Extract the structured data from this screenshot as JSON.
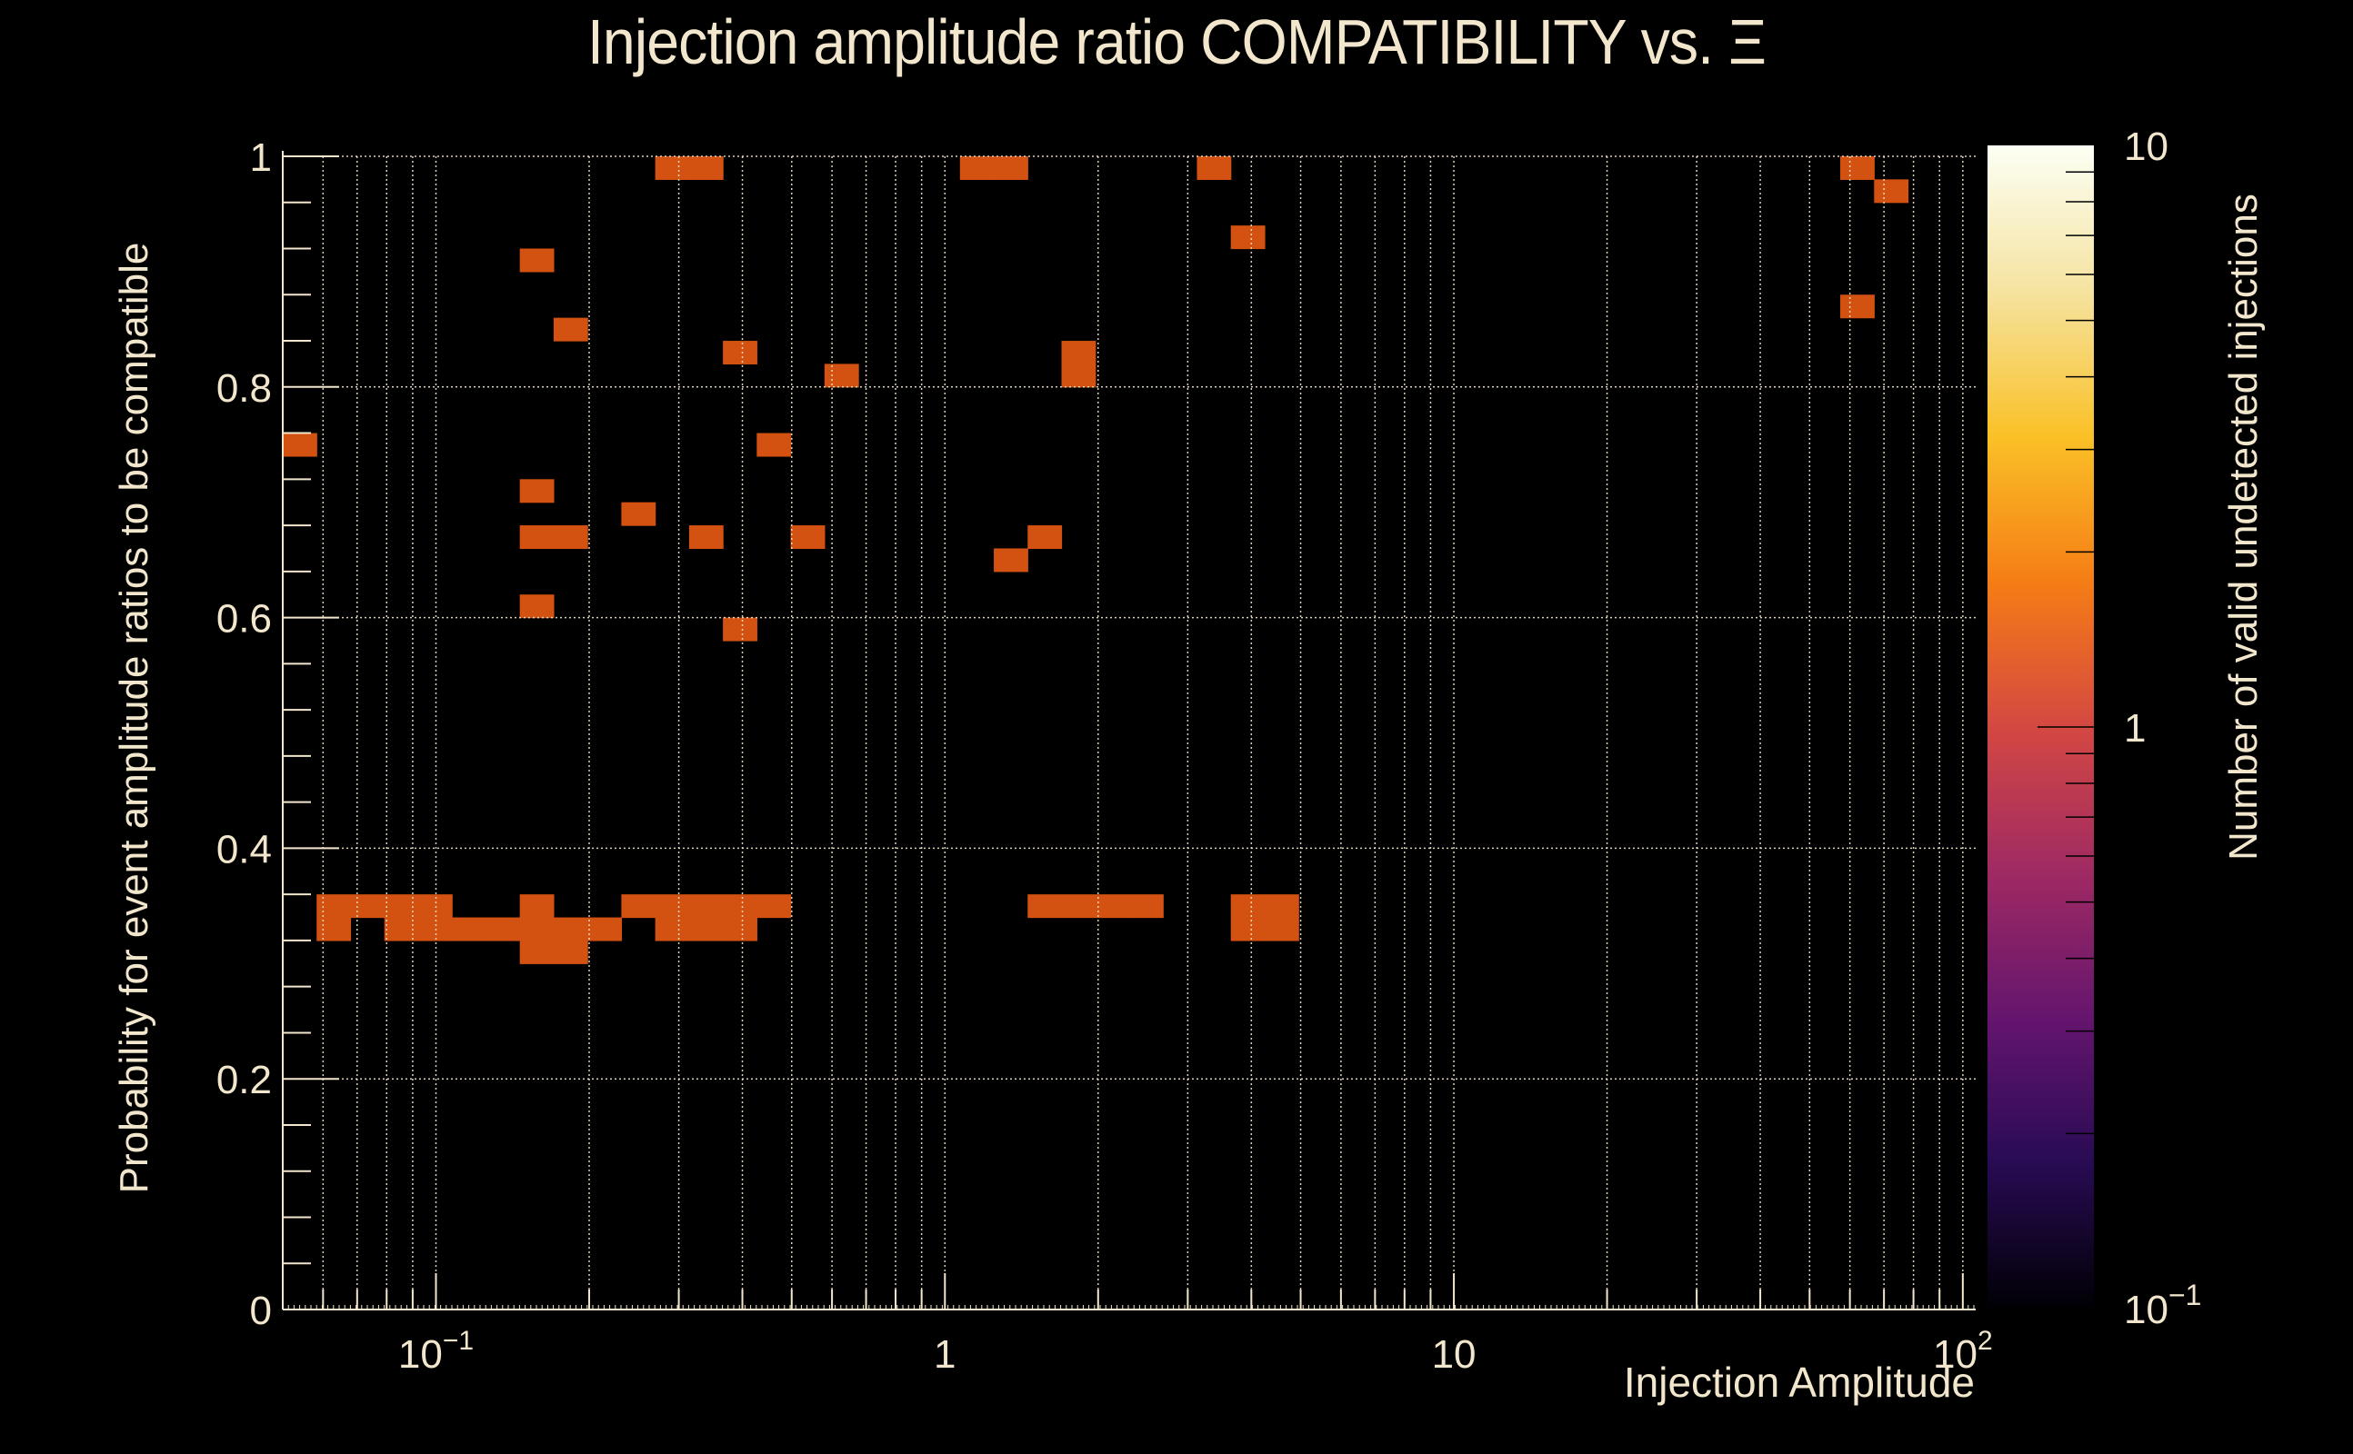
{
  "chart_data": {
    "type": "heatmap",
    "title": "Injection amplitude ratio COMPATIBILITY vs.  Ξ",
    "xlabel": "Injection Amplitude",
    "ylabel": "Probability for event amplitude ratios to be compatible",
    "zlabel": "Number of valid undetected injections",
    "x_scale": "log",
    "xlim": [
      0.05,
      106
    ],
    "ylim": [
      0,
      1
    ],
    "z_scale": "log",
    "zlim": [
      0.1,
      10
    ],
    "grid": true,
    "x_ticks": [
      {
        "value": 0.1,
        "label": "10",
        "sup": "−1"
      },
      {
        "value": 1,
        "label": "1",
        "sup": ""
      },
      {
        "value": 10,
        "label": "10",
        "sup": ""
      },
      {
        "value": 100,
        "label": "10",
        "sup": "2"
      }
    ],
    "y_ticks": [
      {
        "value": 0,
        "label": "0"
      },
      {
        "value": 0.2,
        "label": "0.2"
      },
      {
        "value": 0.4,
        "label": "0.4"
      },
      {
        "value": 0.6,
        "label": "0.6"
      },
      {
        "value": 0.8,
        "label": "0.8"
      },
      {
        "value": 1,
        "label": "1"
      }
    ],
    "z_ticks": [
      {
        "value": 0.1,
        "label": "10",
        "sup": "−1"
      },
      {
        "value": 1,
        "label": "1",
        "sup": ""
      },
      {
        "value": 10,
        "label": "10",
        "sup": ""
      }
    ],
    "n_xbins": 50,
    "n_ybins": 50,
    "palette": [
      "#000000",
      "#D35212",
      "#E18A22",
      "#E4A837",
      "#E5BC5E",
      "#ECD08A"
    ],
    "colorbar_stops": [
      "#000004",
      "#280B54",
      "#65156E",
      "#9F2A63",
      "#D44842",
      "#F57D15",
      "#FAC127",
      "#F5E3A0",
      "#FCFFF4"
    ],
    "cells_note": "rows from top (y 0.98-1.00) to bottom (y 0.00-0.02); each char is the count in that bin",
    "cells": [
      "00000000000110000000110000010000000000000000001000",
      "00000000000000000000000000000000000000000000000100",
      "00000000000000000000000000000000000000000000000000",
      "00000000000000000000000000001000000000000000000000",
      "00000001000000000000000000000000000000000000000000",
      "00000000000000000000000000000000000000000000000000",
      "00000000000000000000000000000000000000000000001000",
      "00000000100000000000000000000000000000000000000000",
      "00000000000001000000000100000000000000000000000000",
      "00000000000000001000000100000000000000000000000000",
      "00000000000000000000000000000000000000000000000000",
      "00000000000000000000000000000000000000000000000000",
      "10000000000000100000000000000000000000000000000000",
      "00000000000000000000000000000000000000000000000000",
      "00000001000000000000000000000000000000000000000000",
      "00000000001000000000000000000000000000000000000000",
      "00000001100010010000001000000000000000000000000000",
      "00000000000000000000010000000000000000000000000000",
      "00000000000000000000000000000000000000000000000000",
      "00000001000000000000000000000000000000000000000000",
      "00000000000001000000000000000000000000000000000000",
      "00000000000000000000000000000000000000000000000000",
      "00000000000000000000000000000000000000000000000000",
      "00000000000000000000000000000000000000000000000000",
      "00000000000000000000000000000000000000000000000000",
      "00000000000000000000000000000000000000000000000000",
      "00000000000000000000000000000000000000000000000000",
      "00000000000000000000000000000000000000000000000000",
      "00000000000000000000000000000000000000000000000000",
      "00000000000000000000000000000000000000000000000000",
      "00000000000000000000000000000000000000000000000000",
      "00000000000000000000000000000000000000000000000000",
      "01111001001111100000001111001100000000000000000000",
      "01011111110111000000000000001100000000000000000000",
      "00000001100000000000000000000000000000000000000000",
      "00000000000000000000000000000000000000000000000000",
      "00000000000000000000000000000000000000000000000000",
      "00000000000000000000000000000000000000000000000000",
      "00000000000000000000000000000000000000000000000000",
      "00000000000000000000000000000000000000000000000000",
      "00000000000000000000000000000000000000000000000000",
      "00000000000000000000000000000000000000000000000000",
      "00000000000000000000000000000000000000000000000000",
      "00000000000000000000000000000000000000000000000000",
      "00000000000000000000000000000000000000000000000000",
      "00000000000000000000000000000000000000000000000000",
      "00000000000000000000000000000000000000000000000000",
      "00000000000000000000000000000000000000000000000000",
      "00000000000000000000000000000000000000000000000000",
      "00000000000000000000000000000000000000000000000000"
    ]
  }
}
